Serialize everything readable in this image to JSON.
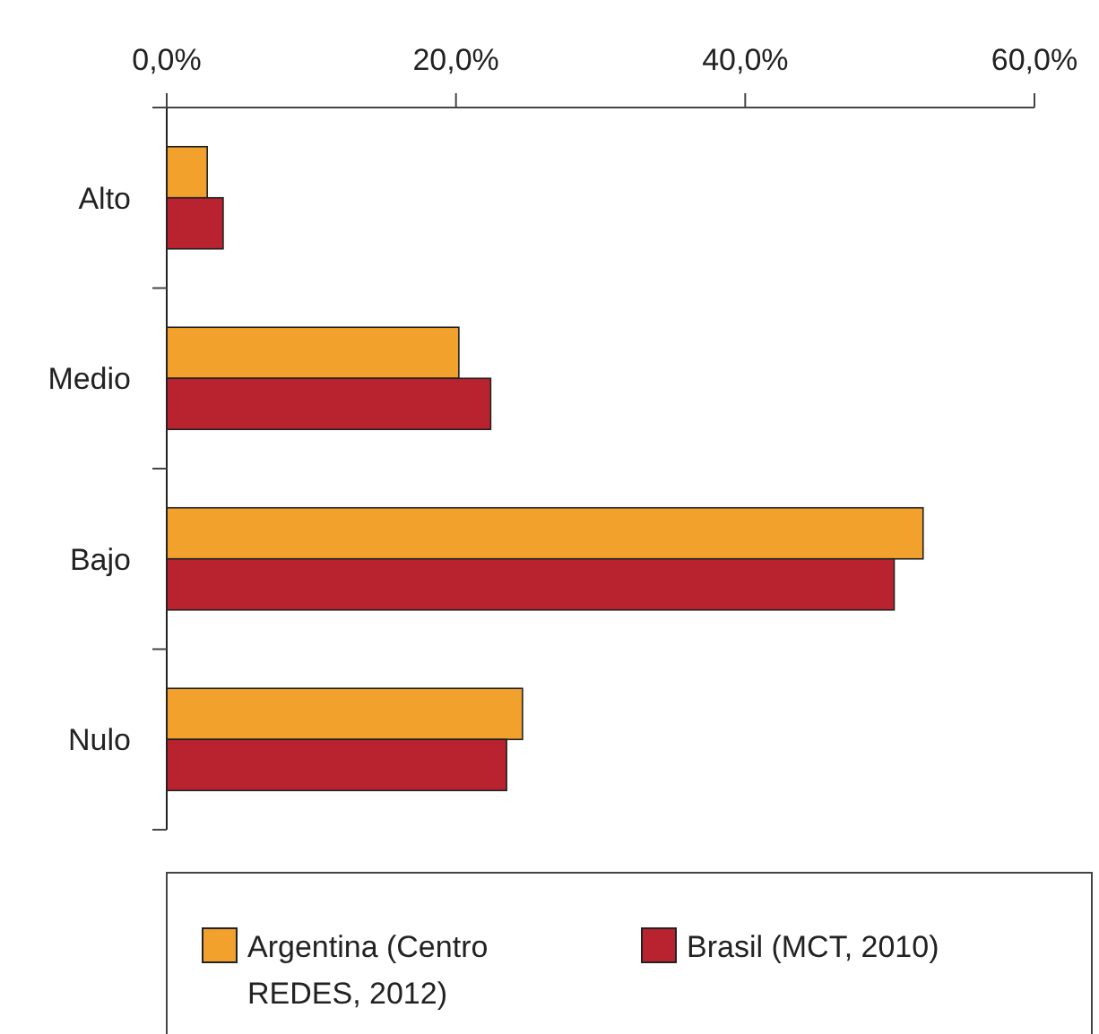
{
  "chart_data": {
    "type": "bar",
    "orientation": "horizontal",
    "categories": [
      "Alto",
      "Medio",
      "Bajo",
      "Nulo"
    ],
    "series": [
      {
        "name": "Argentina (Centro REDES, 2012)",
        "color": "#f2a12c",
        "values": [
          2.8,
          20.2,
          52.3,
          24.6
        ]
      },
      {
        "name": "Brasil (MCT, 2010)",
        "color": "#b8232f",
        "values": [
          3.9,
          22.4,
          50.3,
          23.5
        ]
      }
    ],
    "xlim": [
      0,
      60
    ],
    "xticks": [
      {
        "value": 0,
        "label": "0,0%"
      },
      {
        "value": 20,
        "label": "20,0%"
      },
      {
        "value": 40,
        "label": "40,0%"
      },
      {
        "value": 60,
        "label": "60,0%"
      }
    ],
    "legend": "bottom"
  }
}
